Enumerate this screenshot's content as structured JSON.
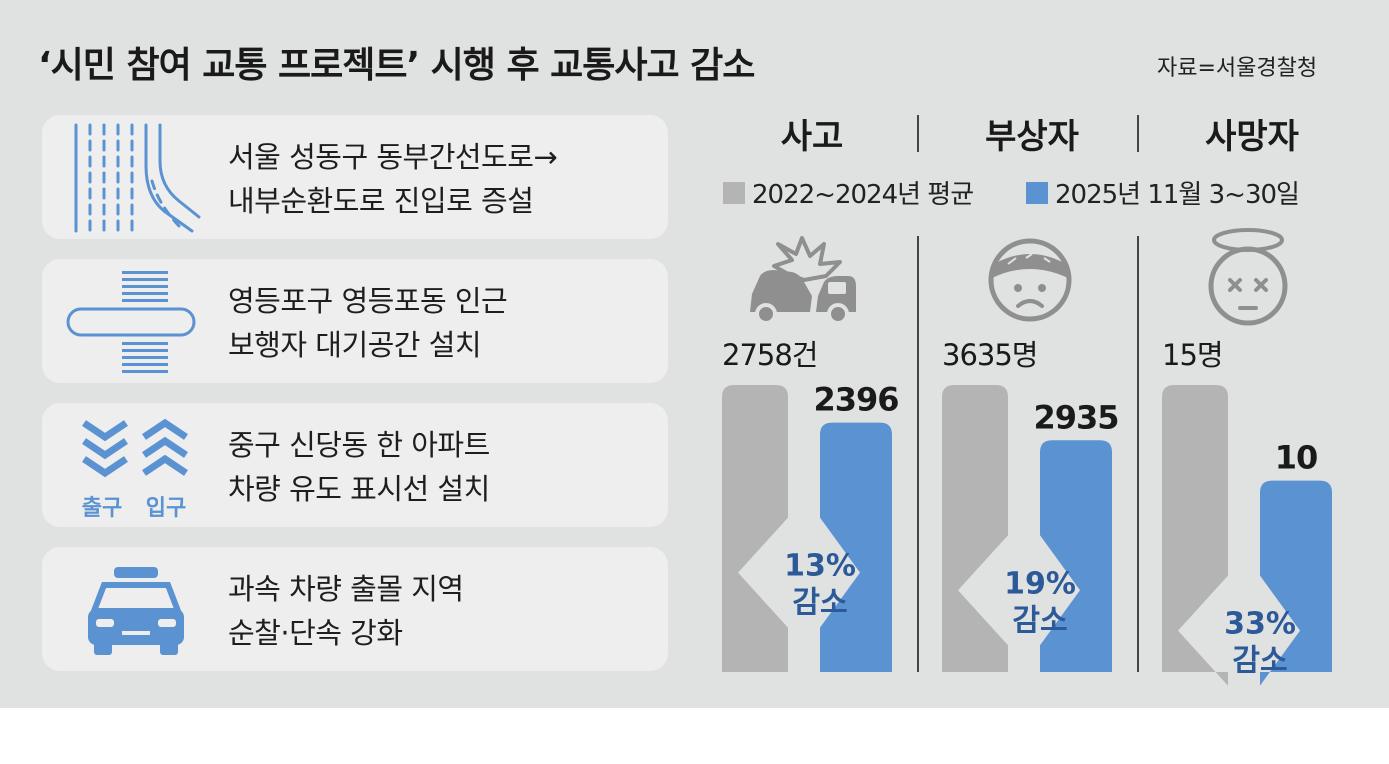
{
  "title": "‘시민 참여 교통 프로젝트’ 시행 후 교통사고 감소",
  "source": "자료=서울경찰청",
  "measures": [
    {
      "line1": "서울 성동구 동부간선도로→",
      "line2": "내부순환도로 진입로 증설",
      "icon": "road-merge-icon"
    },
    {
      "line1": "영등포구 영등포동 인근",
      "line2": "보행자 대기공간 설치",
      "icon": "pedestrian-waiting-area-icon"
    },
    {
      "line1": "중구 신당동 한 아파트",
      "line2": "차량 유도 표시선 설치",
      "icon": "chevron-arrows-icon",
      "icon_labels": [
        "출구",
        "입구"
      ]
    },
    {
      "line1": "과속 차량 출몰 지역",
      "line2": "순찰·단속 강화",
      "icon": "police-car-icon"
    }
  ],
  "colors": {
    "before": "#b4b4b4",
    "after": "#5b92d1",
    "background": "#e0e1e1",
    "percent_text": "#2c5a99",
    "icon_gray": "#8f8f8f"
  },
  "chart_data": {
    "type": "bar",
    "categories": [
      "사고",
      "부상자",
      "사망자"
    ],
    "series": [
      {
        "name": "2022~2024년 평균",
        "values": [
          2758,
          3635,
          15
        ]
      },
      {
        "name": "2025년 11월 3~30일",
        "values": [
          2396,
          2935,
          10
        ]
      }
    ],
    "labels_before": [
      "2758건",
      "3635명",
      "15명"
    ],
    "labels_after": [
      "2396",
      "2935",
      "10"
    ],
    "reductions": [
      "13%",
      "19%",
      "33%"
    ],
    "reduction_word": "감소",
    "icons": [
      "car-crash-icon",
      "injured-face-icon",
      "dead-face-icon"
    ],
    "legend_position": "top"
  }
}
